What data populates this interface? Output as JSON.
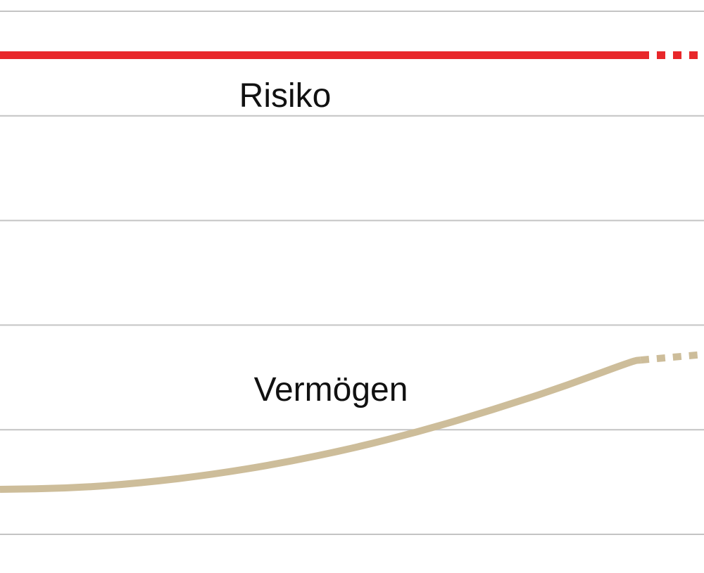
{
  "chart_data": {
    "type": "line",
    "title": "",
    "xlabel": "",
    "ylabel": "",
    "x": [
      0,
      1,
      2,
      3,
      4,
      5,
      6,
      7,
      8,
      9,
      10
    ],
    "xlim": [
      0,
      10
    ],
    "ylim": [
      0,
      5
    ],
    "grid": true,
    "projection_start_x": 9.1,
    "series": [
      {
        "name": "Risiko",
        "color": "#e8272a",
        "values": [
          4.58,
          4.58,
          4.58,
          4.58,
          4.58,
          4.58,
          4.58,
          4.58,
          4.58,
          4.58,
          4.58
        ]
      },
      {
        "name": "Vermögen",
        "color": "#cdbd9a",
        "values": [
          0.43,
          0.44,
          0.49,
          0.57,
          0.68,
          0.82,
          0.99,
          1.19,
          1.41,
          1.66,
          1.72
        ]
      }
    ]
  }
}
